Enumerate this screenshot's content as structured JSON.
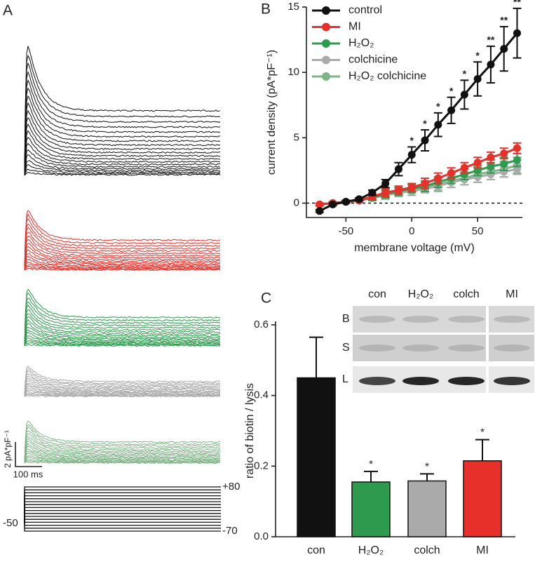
{
  "panel_a": {
    "label": "A",
    "scale_y": "2 pA*pF⁻¹",
    "scale_x": "100 ms",
    "v_top": "+80",
    "v_hold": "-50",
    "v_bottom": "-70"
  },
  "chart_data": [
    {
      "type": "line",
      "label": "B",
      "xlabel": "membrane voltage (mV)",
      "ylabel": "current density (pA*pF⁻¹)",
      "x": [
        -70,
        -60,
        -50,
        -40,
        -30,
        -20,
        -10,
        0,
        10,
        20,
        30,
        40,
        50,
        60,
        70,
        80
      ],
      "xlim": [
        -80,
        84
      ],
      "ylim": [
        -1.1,
        15
      ],
      "xticks": [
        -50,
        0,
        50
      ],
      "yticks": [
        0,
        5,
        10,
        15
      ],
      "zero_line": true,
      "legend": "upper left",
      "series": [
        {
          "name": "control",
          "color": "#111111",
          "values": [
            -0.6,
            -0.1,
            0.1,
            0.3,
            0.8,
            1.5,
            2.6,
            3.7,
            4.8,
            6.0,
            7.1,
            8.3,
            9.5,
            10.6,
            11.8,
            13.0
          ],
          "errors": [
            0.1,
            0.1,
            0.1,
            0.1,
            0.2,
            0.3,
            0.5,
            0.6,
            0.8,
            0.9,
            1.0,
            1.1,
            1.3,
            1.4,
            1.7,
            1.9
          ]
        },
        {
          "name": "MI",
          "color": "#e8302a",
          "values": [
            -0.1,
            0.0,
            0.1,
            0.2,
            0.5,
            0.8,
            1.0,
            1.2,
            1.5,
            1.9,
            2.3,
            2.7,
            3.1,
            3.5,
            3.8,
            4.2
          ],
          "errors": [
            0.1,
            0.1,
            0.1,
            0.1,
            0.2,
            0.3,
            0.3,
            0.3,
            0.4,
            0.4,
            0.4,
            0.4,
            0.4,
            0.4,
            0.4,
            0.4
          ]
        },
        {
          "name": "H₂O₂",
          "color": "#2e9a4e",
          "values": [
            -0.1,
            0.0,
            0.1,
            0.2,
            0.4,
            0.7,
            0.9,
            1.1,
            1.3,
            1.6,
            1.9,
            2.2,
            2.5,
            2.8,
            3.0,
            3.3
          ],
          "errors": [
            0.1,
            0.1,
            0.1,
            0.1,
            0.2,
            0.3,
            0.3,
            0.3,
            0.4,
            0.4,
            0.4,
            0.4,
            0.4,
            0.5,
            0.5,
            0.5
          ]
        },
        {
          "name": "colchicine",
          "color": "#aaaaaa",
          "values": [
            -0.1,
            0.0,
            0.1,
            0.2,
            0.4,
            0.6,
            0.8,
            0.9,
            1.1,
            1.3,
            1.6,
            1.8,
            2.0,
            2.2,
            2.4,
            2.6
          ],
          "errors": [
            0.1,
            0.1,
            0.1,
            0.1,
            0.2,
            0.2,
            0.3,
            0.3,
            0.3,
            0.3,
            0.4,
            0.4,
            0.4,
            0.4,
            0.4,
            0.4
          ]
        },
        {
          "name": "H₂O₂ colchicine",
          "color": "#7fb487",
          "values": [
            -0.1,
            0.0,
            0.1,
            0.2,
            0.4,
            0.6,
            0.8,
            1.0,
            1.2,
            1.4,
            1.7,
            1.9,
            2.2,
            2.4,
            2.6,
            2.9
          ],
          "errors": [
            0.1,
            0.1,
            0.1,
            0.1,
            0.2,
            0.3,
            0.3,
            0.4,
            0.4,
            0.5,
            0.5,
            0.5,
            0.6,
            0.6,
            0.6,
            0.6
          ]
        }
      ],
      "significance": [
        null,
        null,
        null,
        null,
        null,
        null,
        null,
        "*",
        "*",
        "*",
        "*",
        "*",
        "*",
        "**",
        "**",
        "**"
      ]
    },
    {
      "type": "bar",
      "label": "C",
      "ylabel": "ratio of biotin / lysis",
      "categories": [
        "con",
        "H₂O₂",
        "colch",
        "MI"
      ],
      "values": [
        0.45,
        0.155,
        0.158,
        0.215
      ],
      "errors": [
        0.115,
        0.03,
        0.02,
        0.06
      ],
      "colors": [
        "#111111",
        "#2e9a4e",
        "#aaaaaa",
        "#e8302a"
      ],
      "ylim": [
        0,
        0.6
      ],
      "yticks": [
        {
          "value": 0,
          "label": "0.0"
        },
        0.2,
        0.4,
        0.6
      ],
      "significance": [
        null,
        "*",
        "*",
        "*"
      ],
      "inset": {
        "columns": [
          "con",
          "H₂O₂",
          "colch",
          "MI"
        ],
        "rows": [
          "B",
          "S",
          "L"
        ]
      }
    }
  ]
}
